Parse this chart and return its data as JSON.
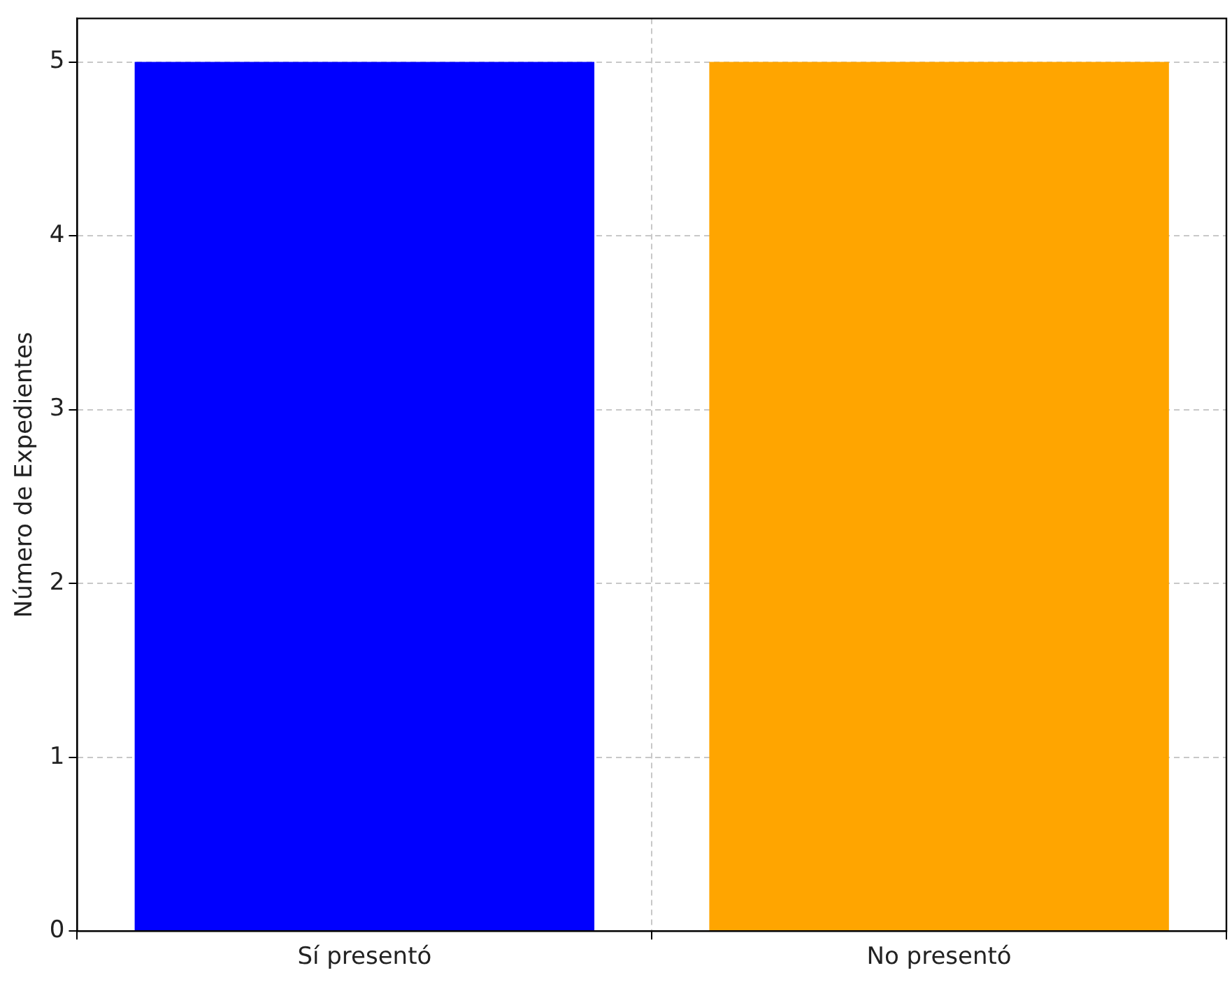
{
  "chart_data": {
    "type": "bar",
    "ylabel": "Número de Expedientes",
    "categories": [
      "Sí presentó",
      "No presentó"
    ],
    "values": [
      5,
      5
    ],
    "colors": [
      "#0000ff",
      "#ffa500"
    ],
    "ylim": [
      0,
      5.25
    ],
    "yticks": [
      0,
      1,
      2,
      3,
      4,
      5
    ],
    "grid": true
  }
}
